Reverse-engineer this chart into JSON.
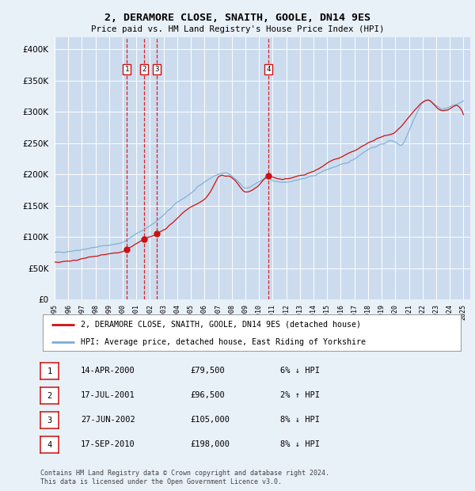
{
  "title": "2, DERAMORE CLOSE, SNAITH, GOOLE, DN14 9ES",
  "subtitle": "Price paid vs. HM Land Registry's House Price Index (HPI)",
  "background_color": "#e8f0f8",
  "plot_background": "#ccdcee",
  "red_line_label": "2, DERAMORE CLOSE, SNAITH, GOOLE, DN14 9ES (detached house)",
  "blue_line_label": "HPI: Average price, detached house, East Riding of Yorkshire",
  "footer": "Contains HM Land Registry data © Crown copyright and database right 2024.\nThis data is licensed under the Open Government Licence v3.0.",
  "transactions": [
    {
      "num": 1,
      "date": "14-APR-2000",
      "price": 79500,
      "year": 2000.29,
      "pct": "6%",
      "dir": "↓"
    },
    {
      "num": 2,
      "date": "17-JUL-2001",
      "price": 96500,
      "year": 2001.54,
      "pct": "2%",
      "dir": "↑"
    },
    {
      "num": 3,
      "date": "27-JUN-2002",
      "price": 105000,
      "year": 2002.49,
      "pct": "8%",
      "dir": "↓"
    },
    {
      "num": 4,
      "date": "17-SEP-2010",
      "price": 198000,
      "year": 2010.71,
      "pct": "8%",
      "dir": "↓"
    }
  ],
  "ylim": [
    0,
    420000
  ],
  "yticks": [
    0,
    50000,
    100000,
    150000,
    200000,
    250000,
    300000,
    350000,
    400000
  ],
  "xlim_start": 1995.0,
  "xlim_end": 2025.5,
  "hpi_seed": 42,
  "red_seed": 15
}
